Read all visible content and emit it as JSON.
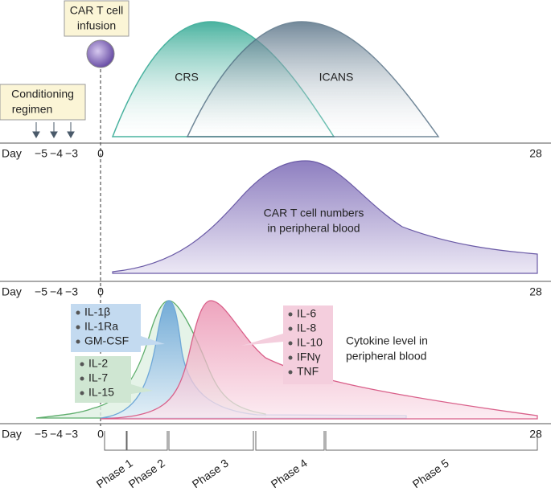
{
  "infusion": {
    "line1": "CAR T cell",
    "line2": "infusion"
  },
  "conditioning": {
    "line1": "Conditioning",
    "line2": "regimen"
  },
  "panels": [
    {
      "curves": [
        "CRS",
        "ICANS"
      ],
      "axis": {
        "day": "Day",
        "ticks": [
          "−5",
          "−4",
          "−3",
          "0",
          "28"
        ]
      }
    },
    {
      "label": {
        "line1": "CAR T cell numbers",
        "line2": "in peripheral blood"
      },
      "axis": {
        "day": "Day",
        "ticks": [
          "−5",
          "−4",
          "−3",
          "0",
          "28"
        ]
      }
    },
    {
      "boxes": [
        [
          "IL-1β",
          "IL-1Ra",
          "GM-CSF"
        ],
        [
          "IL-2",
          "IL-7",
          "IL-15"
        ],
        [
          "IL-6",
          "IL-8",
          "IL-10",
          "IFNγ",
          "TNF"
        ]
      ],
      "label": {
        "line1": "Cytokine level in",
        "line2": "peripheral blood"
      },
      "axis": {
        "day": "Day",
        "ticks": [
          "−5",
          "−4",
          "−3",
          "0",
          "28"
        ]
      }
    }
  ],
  "phases": [
    "Phase 1",
    "Phase 2",
    "Phase 3",
    "Phase 4",
    "Phase 5"
  ]
}
